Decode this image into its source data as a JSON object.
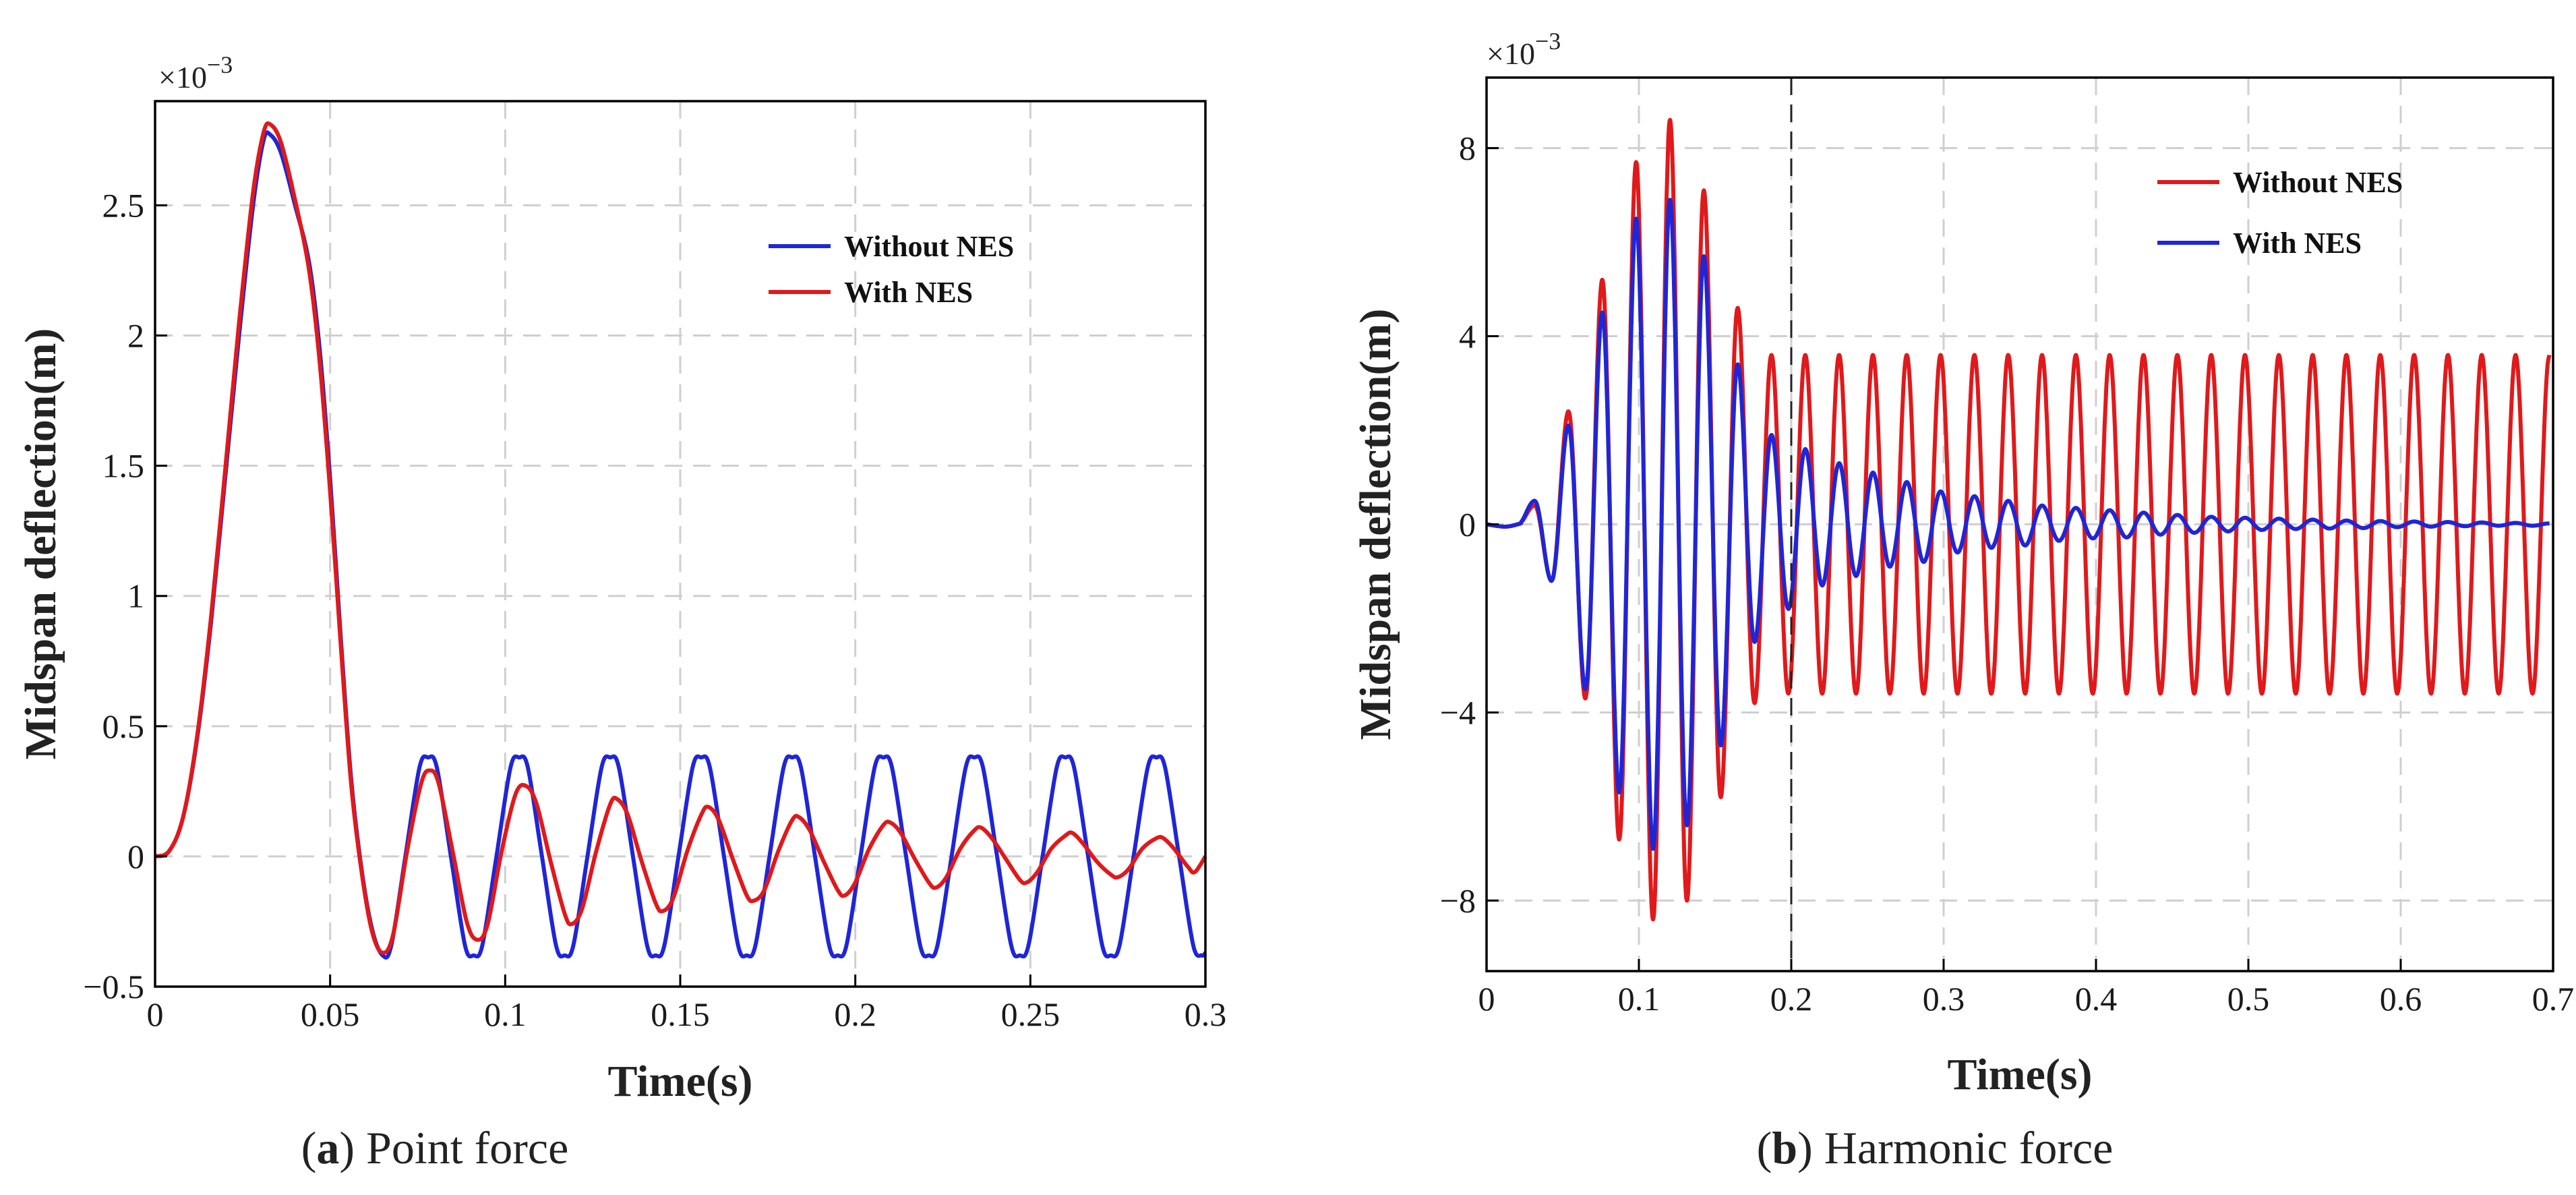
{
  "chart_data": [
    {
      "type": "line",
      "caption_label": "a",
      "caption_text": "Point force",
      "xlabel": "Time(s)",
      "ylabel": "Midspan deflection(m)",
      "y_multiplier": "×10",
      "y_exponent": "−3",
      "xlim": [
        0,
        0.3
      ],
      "ylim": [
        -0.5,
        2.9
      ],
      "xticks": [
        "0",
        "0.05",
        "0.1",
        "0.15",
        "0.2",
        "0.25",
        "0.3"
      ],
      "yticks": [
        "−0.5",
        "0",
        "0.5",
        "1",
        "1.5",
        "2",
        "2.5"
      ],
      "grid": true,
      "legend_position": "upper-right",
      "series": [
        {
          "name": "Without NES",
          "color": "#1f26d6",
          "points": [
            [
              0,
              0
            ],
            [
              0.004,
              0.02
            ],
            [
              0.008,
              0.15
            ],
            [
              0.012,
              0.45
            ],
            [
              0.016,
              0.9
            ],
            [
              0.02,
              1.45
            ],
            [
              0.024,
              2.0
            ],
            [
              0.028,
              2.5
            ],
            [
              0.031,
              2.75
            ],
            [
              0.033,
              2.77
            ],
            [
              0.036,
              2.7
            ],
            [
              0.04,
              2.5
            ],
            [
              0.044,
              2.28
            ],
            [
              0.047,
              1.95
            ],
            [
              0.05,
              1.45
            ],
            [
              0.053,
              0.85
            ],
            [
              0.056,
              0.3
            ],
            [
              0.059,
              -0.05
            ],
            [
              0.062,
              -0.28
            ],
            [
              0.065,
              -0.38
            ],
            [
              0.0675,
              -0.34
            ],
            [
              0.0715,
              0
            ],
            [
              0.0755,
              0.34
            ],
            [
              0.078,
              0.38
            ],
            [
              0.0805,
              0.34
            ],
            [
              0.0845,
              0
            ],
            [
              0.0885,
              -0.34
            ],
            [
              0.091,
              -0.38
            ],
            [
              0.0935,
              -0.34
            ],
            [
              0.0975,
              0
            ],
            [
              0.1015,
              0.34
            ],
            [
              0.104,
              0.38
            ],
            [
              0.1065,
              0.34
            ],
            [
              0.1105,
              0
            ],
            [
              0.1145,
              -0.34
            ],
            [
              0.117,
              -0.38
            ],
            [
              0.1195,
              -0.34
            ],
            [
              0.1235,
              0
            ],
            [
              0.1275,
              0.34
            ],
            [
              0.13,
              0.38
            ],
            [
              0.1325,
              0.34
            ],
            [
              0.1365,
              0
            ],
            [
              0.1405,
              -0.34
            ],
            [
              0.143,
              -0.38
            ],
            [
              0.1455,
              -0.34
            ],
            [
              0.1495,
              0
            ],
            [
              0.1535,
              0.34
            ],
            [
              0.156,
              0.38
            ],
            [
              0.1585,
              0.34
            ],
            [
              0.1625,
              0
            ],
            [
              0.1665,
              -0.34
            ],
            [
              0.169,
              -0.38
            ],
            [
              0.1715,
              -0.34
            ],
            [
              0.1755,
              0
            ],
            [
              0.1795,
              0.34
            ],
            [
              0.182,
              0.38
            ],
            [
              0.1845,
              0.34
            ],
            [
              0.1885,
              0
            ],
            [
              0.1925,
              -0.34
            ],
            [
              0.195,
              -0.38
            ],
            [
              0.1975,
              -0.34
            ],
            [
              0.2015,
              0
            ],
            [
              0.2055,
              0.34
            ],
            [
              0.208,
              0.38
            ],
            [
              0.2105,
              0.34
            ],
            [
              0.2145,
              0
            ],
            [
              0.2185,
              -0.34
            ],
            [
              0.221,
              -0.38
            ],
            [
              0.2235,
              -0.34
            ],
            [
              0.2275,
              0
            ],
            [
              0.2315,
              0.34
            ],
            [
              0.234,
              0.38
            ],
            [
              0.2365,
              0.34
            ],
            [
              0.2405,
              0
            ],
            [
              0.2445,
              -0.34
            ],
            [
              0.247,
              -0.38
            ],
            [
              0.2495,
              -0.34
            ],
            [
              0.2535,
              0
            ],
            [
              0.2575,
              0.34
            ],
            [
              0.26,
              0.38
            ],
            [
              0.2625,
              0.34
            ],
            [
              0.2665,
              0
            ],
            [
              0.2705,
              -0.34
            ],
            [
              0.273,
              -0.38
            ],
            [
              0.2755,
              -0.34
            ],
            [
              0.2795,
              0
            ],
            [
              0.2835,
              0.34
            ],
            [
              0.286,
              0.38
            ],
            [
              0.2885,
              0.34
            ],
            [
              0.2925,
              0
            ],
            [
              0.2965,
              -0.34
            ],
            [
              0.299,
              -0.38
            ],
            [
              0.3,
              -0.37
            ]
          ]
        },
        {
          "name": "With NES",
          "color": "#e0191b",
          "points": [
            [
              0,
              0
            ],
            [
              0.004,
              0.02
            ],
            [
              0.008,
              0.15
            ],
            [
              0.012,
              0.46
            ],
            [
              0.016,
              0.92
            ],
            [
              0.02,
              1.48
            ],
            [
              0.024,
              2.05
            ],
            [
              0.028,
              2.55
            ],
            [
              0.031,
              2.78
            ],
            [
              0.033,
              2.81
            ],
            [
              0.036,
              2.74
            ],
            [
              0.04,
              2.52
            ],
            [
              0.044,
              2.25
            ],
            [
              0.047,
              1.9
            ],
            [
              0.05,
              1.4
            ],
            [
              0.053,
              0.82
            ],
            [
              0.056,
              0.28
            ],
            [
              0.059,
              -0.06
            ],
            [
              0.062,
              -0.29
            ],
            [
              0.065,
              -0.37
            ],
            [
              0.068,
              -0.3
            ],
            [
              0.072,
              0.02
            ],
            [
              0.076,
              0.28
            ],
            [
              0.0785,
              0.33
            ],
            [
              0.081,
              0.28
            ],
            [
              0.085,
              0.02
            ],
            [
              0.089,
              -0.25
            ],
            [
              0.092,
              -0.32
            ],
            [
              0.095,
              -0.26
            ],
            [
              0.099,
              0.02
            ],
            [
              0.103,
              0.24
            ],
            [
              0.106,
              0.27
            ],
            [
              0.109,
              0.2
            ],
            [
              0.113,
              -0.02
            ],
            [
              0.117,
              -0.22
            ],
            [
              0.119,
              -0.26
            ],
            [
              0.122,
              -0.2
            ],
            [
              0.126,
              0.02
            ],
            [
              0.13,
              0.2
            ],
            [
              0.132,
              0.22
            ],
            [
              0.135,
              0.16
            ],
            [
              0.139,
              -0.02
            ],
            [
              0.143,
              -0.18
            ],
            [
              0.145,
              -0.21
            ],
            [
              0.148,
              -0.16
            ],
            [
              0.152,
              0.02
            ],
            [
              0.156,
              0.16
            ],
            [
              0.158,
              0.19
            ],
            [
              0.161,
              0.14
            ],
            [
              0.165,
              -0.01
            ],
            [
              0.169,
              -0.15
            ],
            [
              0.171,
              -0.17
            ],
            [
              0.174,
              -0.13
            ],
            [
              0.178,
              0.02
            ],
            [
              0.182,
              0.14
            ],
            [
              0.184,
              0.15
            ],
            [
              0.187,
              0.1
            ],
            [
              0.191,
              -0.02
            ],
            [
              0.195,
              -0.13
            ],
            [
              0.197,
              -0.15
            ],
            [
              0.2,
              -0.1
            ],
            [
              0.204,
              0.03
            ],
            [
              0.208,
              0.12
            ],
            [
              0.21,
              0.13
            ],
            [
              0.213,
              0.09
            ],
            [
              0.217,
              -0.01
            ],
            [
              0.221,
              -0.1
            ],
            [
              0.223,
              -0.12
            ],
            [
              0.226,
              -0.08
            ],
            [
              0.23,
              0.03
            ],
            [
              0.234,
              0.1
            ],
            [
              0.236,
              0.11
            ],
            [
              0.239,
              0.07
            ],
            [
              0.243,
              -0.01
            ],
            [
              0.247,
              -0.09
            ],
            [
              0.249,
              -0.1
            ],
            [
              0.252,
              -0.06
            ],
            [
              0.256,
              0.03
            ],
            [
              0.26,
              0.08
            ],
            [
              0.262,
              0.09
            ],
            [
              0.265,
              0.05
            ],
            [
              0.269,
              -0.02
            ],
            [
              0.273,
              -0.07
            ],
            [
              0.275,
              -0.08
            ],
            [
              0.278,
              -0.05
            ],
            [
              0.282,
              0.03
            ],
            [
              0.286,
              0.07
            ],
            [
              0.288,
              0.07
            ],
            [
              0.291,
              0.03
            ],
            [
              0.295,
              -0.04
            ],
            [
              0.297,
              -0.06
            ],
            [
              0.3,
              0.0
            ]
          ]
        }
      ]
    },
    {
      "type": "line",
      "caption_label": "b",
      "caption_text": "Harmonic force",
      "xlabel": "Time(s)",
      "ylabel": "Midspan deflection(m)",
      "y_multiplier": "×10",
      "y_exponent": "−3",
      "xlim": [
        0,
        0.7
      ],
      "ylim": [
        -9.5,
        9.5
      ],
      "xticks": [
        "0",
        "0.1",
        "0.2",
        "0.3",
        "0.4",
        "0.5",
        "0.6",
        "0.7"
      ],
      "yticks": [
        "−8",
        "−4",
        "0",
        "4",
        "8"
      ],
      "grid": true,
      "legend_position": "upper-right",
      "vline_x": 0.2,
      "series": [
        {
          "name": "Without NES",
          "color": "#e0191b",
          "generator": {
            "period": 0.0222,
            "phase_x": 0.0205,
            "peaks": [
              0.4,
              -1.2,
              2.4,
              -3.7,
              5.2,
              -6.7,
              7.7,
              -8.4,
              8.6,
              -8.0,
              7.1,
              -5.8,
              4.6,
              -3.8,
              3.6
            ],
            "steady_amplitude": 3.6,
            "end_x": 0.7
          }
        },
        {
          "name": "With NES",
          "color": "#1f26d6",
          "generator": {
            "period": 0.0222,
            "phase_x": 0.0205,
            "peaks": [
              0.5,
              -1.2,
              2.1,
              -3.5,
              4.5,
              -5.7,
              6.5,
              -6.9,
              6.9,
              -6.4,
              5.7,
              -4.7,
              3.4,
              -2.5,
              1.9,
              -1.8,
              1.6,
              -1.3,
              1.3,
              -1.1,
              1.1,
              -0.9,
              0.9,
              -0.8,
              0.7,
              -0.6,
              0.6,
              -0.5,
              0.5,
              -0.45,
              0.4,
              -0.35,
              0.35,
              -0.3,
              0.3,
              -0.28,
              0.25,
              -0.22,
              0.2,
              -0.18,
              0.16,
              -0.15,
              0.14,
              -0.12,
              0.12,
              -0.1,
              0.1,
              -0.09,
              0.08,
              -0.08,
              0.07,
              -0.06,
              0.06,
              -0.05,
              0.05,
              -0.04,
              0.04,
              -0.03,
              0.03,
              -0.03,
              0.02,
              -0.02,
              0.02
            ],
            "steady_amplitude": 0.02,
            "end_x": 0.7
          }
        }
      ]
    }
  ]
}
